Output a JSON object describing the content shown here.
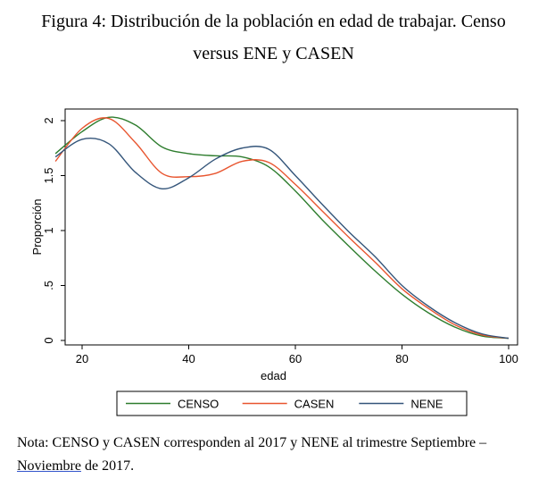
{
  "title_line1": "Figura 4: Distribución de la población en edad de trabajar. Censo",
  "title_line2": "versus ENE y CASEN",
  "note": {
    "line1": "Nota: CENSO y CASEN corresponden al 2017 y NENE al trimestre Septiembre –",
    "underlined_word": "Noviembre",
    "rest": " de 2017."
  },
  "chart_data": {
    "type": "line",
    "xlabel": "edad",
    "ylabel": "Proporción",
    "xlim": [
      15,
      100
    ],
    "ylim": [
      0,
      2
    ],
    "xticks": [
      20,
      40,
      60,
      80,
      100
    ],
    "xtick_labels": [
      "20",
      "40",
      "60",
      "80",
      "100"
    ],
    "yticks": [
      0,
      0.5,
      1,
      1.5,
      2
    ],
    "ytick_labels": [
      "0",
      ".5",
      "1",
      "1.5",
      "2"
    ],
    "grid": false,
    "legend_position": "bottom",
    "series": [
      {
        "name": "CENSO",
        "color": "#2e7d2e",
        "x": [
          15,
          20,
          25,
          30,
          35,
          40,
          45,
          50,
          55,
          60,
          65,
          70,
          75,
          80,
          85,
          90,
          95,
          100
        ],
        "y": [
          1.7,
          1.9,
          2.03,
          1.96,
          1.76,
          1.7,
          1.68,
          1.67,
          1.58,
          1.36,
          1.1,
          0.86,
          0.63,
          0.42,
          0.25,
          0.12,
          0.04,
          0.02
        ]
      },
      {
        "name": "CASEN",
        "color": "#e8552f",
        "x": [
          15,
          20,
          25,
          30,
          35,
          40,
          45,
          50,
          55,
          60,
          65,
          70,
          75,
          80,
          85,
          90,
          95,
          100
        ],
        "y": [
          1.63,
          1.93,
          2.02,
          1.8,
          1.52,
          1.49,
          1.52,
          1.63,
          1.62,
          1.42,
          1.18,
          0.94,
          0.71,
          0.47,
          0.29,
          0.14,
          0.05,
          0.02
        ]
      },
      {
        "name": "NENE",
        "color": "#34557a",
        "x": [
          15,
          20,
          25,
          30,
          35,
          40,
          45,
          50,
          55,
          60,
          65,
          70,
          75,
          80,
          85,
          90,
          95,
          100
        ],
        "y": [
          1.67,
          1.83,
          1.79,
          1.53,
          1.38,
          1.48,
          1.65,
          1.75,
          1.74,
          1.5,
          1.24,
          0.99,
          0.76,
          0.5,
          0.31,
          0.16,
          0.06,
          0.02
        ]
      }
    ]
  }
}
